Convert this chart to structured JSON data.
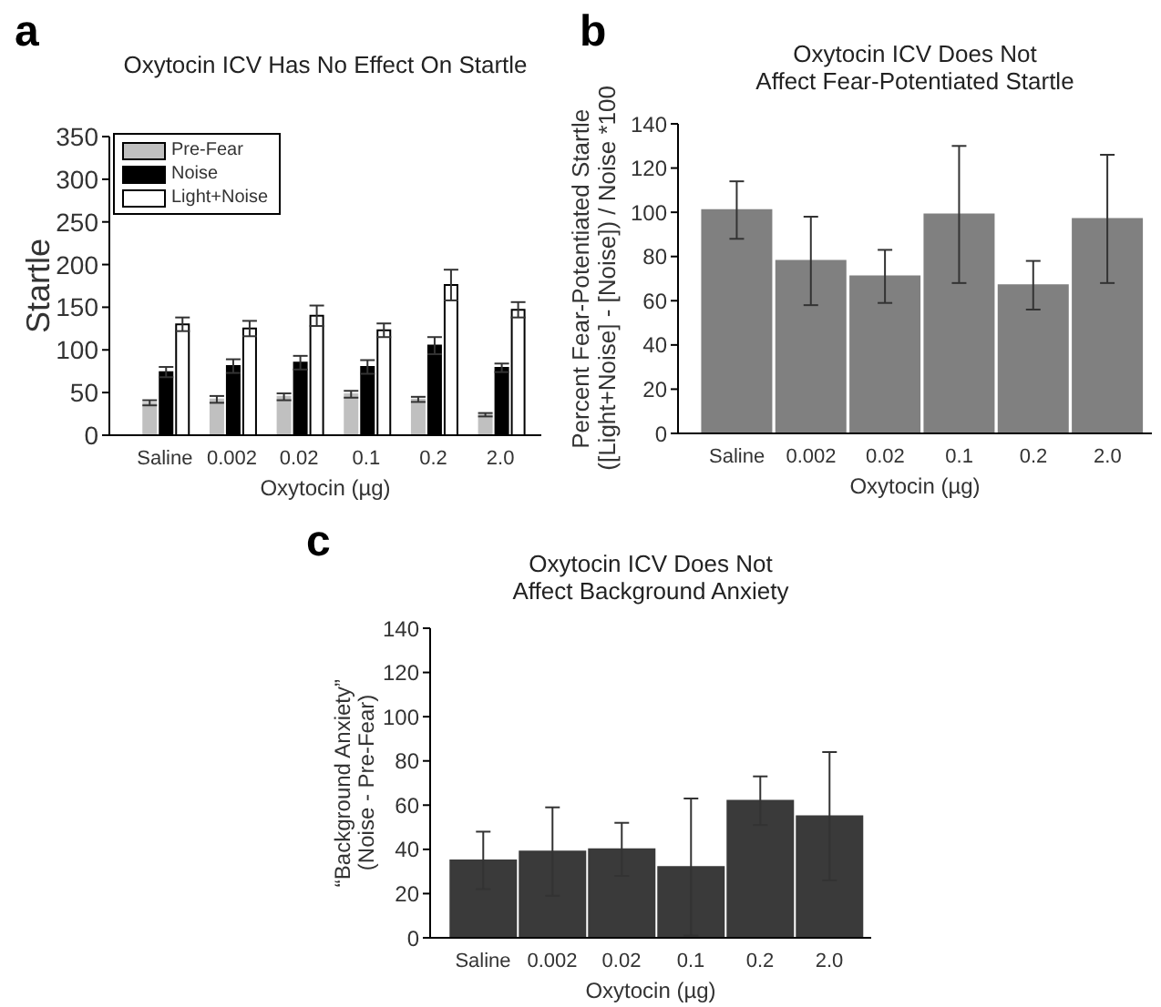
{
  "chart_data": [
    {
      "type": "bar",
      "title": "Oxytocin ICV Has No Effect On Startle",
      "xlabel": "Oxytocin (µg)",
      "ylabel": "Startle",
      "annotations": [
        "a"
      ],
      "categories": [
        "Saline",
        "0.002",
        "0.02",
        "0.1",
        "0.2",
        "2.0"
      ],
      "series": [
        {
          "name": "Pre-Fear",
          "color": "#c0c0c0",
          "values": [
            38,
            42,
            45,
            48,
            42,
            24
          ],
          "errors": [
            3,
            4,
            4,
            4,
            3,
            2
          ]
        },
        {
          "name": "Noise",
          "color": "#000000",
          "values": [
            74,
            81,
            85,
            80,
            105,
            79
          ],
          "errors": [
            6,
            8,
            8,
            8,
            10,
            5
          ]
        },
        {
          "name": "Light+Noise",
          "color": "#ffffff",
          "values": [
            130,
            125,
            140,
            123,
            176,
            147
          ],
          "errors": [
            8,
            9,
            12,
            8,
            18,
            9
          ]
        }
      ],
      "ylim": [
        0,
        350
      ],
      "yticks": [
        0,
        50,
        100,
        150,
        200,
        250,
        300,
        350
      ],
      "legend": "top left"
    },
    {
      "type": "bar",
      "title": "Oxytocin ICV Does Not\nAffect Fear-Potentiated Startle",
      "xlabel": "Oxytocin (µg)",
      "ylabel": "Percent Fear-Potentiated Startle\n([Light+Noise] - [Noise]) / Noise *100",
      "annotations": [
        "b"
      ],
      "categories": [
        "Saline",
        "0.002",
        "0.02",
        "0.1",
        "0.2",
        "2.0"
      ],
      "series": [
        {
          "color": "#808080",
          "values": [
            101,
            78,
            71,
            99,
            67,
            97
          ],
          "errors": [
            13,
            20,
            12,
            31,
            11,
            29
          ]
        }
      ],
      "ylim": [
        0,
        140
      ],
      "yticks": [
        0,
        20,
        40,
        60,
        80,
        100,
        120,
        140
      ]
    },
    {
      "type": "bar",
      "title": "Oxytocin ICV Does Not\nAffect Background Anxiety",
      "xlabel": "Oxytocin (µg)",
      "ylabel": "“Background Anxiety”\n(Noise - Pre-Fear)",
      "annotations": [
        "c"
      ],
      "categories": [
        "Saline",
        "0.002",
        "0.02",
        "0.1",
        "0.2",
        "2.0"
      ],
      "series": [
        {
          "color": "#3a3a3a",
          "values": [
            35,
            39,
            40,
            32,
            62,
            55
          ],
          "errors": [
            13,
            20,
            12,
            31,
            11,
            29
          ]
        }
      ],
      "ylim": [
        0,
        140
      ],
      "yticks": [
        0,
        20,
        40,
        60,
        80,
        100,
        120,
        140
      ]
    }
  ]
}
